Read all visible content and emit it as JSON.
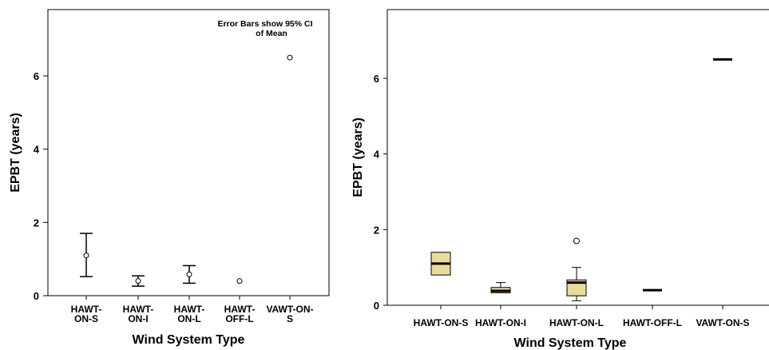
{
  "chart_data": [
    {
      "type": "errorbar",
      "annotation": [
        "Error Bars show 95% CI",
        "of Mean"
      ],
      "xlabel": "Wind System Type",
      "ylabel": "EPBT (years)",
      "ylim": [
        0,
        7.7
      ],
      "yticks": [
        "0",
        "2",
        "4",
        "6"
      ],
      "ytick_values": [
        0,
        2,
        4,
        6
      ],
      "categories": [
        [
          "HAWT-",
          "ON-S"
        ],
        [
          "HAWT-",
          "ON-I"
        ],
        [
          "HAWT-",
          "ON-L"
        ],
        [
          "HAWT-",
          "OFF-L"
        ],
        [
          "VAWT-ON-",
          "S"
        ]
      ],
      "means": [
        1.1,
        0.4,
        0.58,
        0.4,
        6.5
      ],
      "ci_low": [
        0.52,
        0.26,
        0.34,
        null,
        null
      ],
      "ci_high": [
        1.7,
        0.54,
        0.82,
        null,
        null
      ]
    },
    {
      "type": "boxplot",
      "xlabel": "Wind System Type",
      "ylabel": "EPBT (years)",
      "ylim": [
        0,
        7.7
      ],
      "yticks": [
        "0",
        "2",
        "4",
        "6"
      ],
      "ytick_values": [
        0,
        2,
        4,
        6
      ],
      "categories": [
        "HAWT-ON-S",
        "HAWT-ON-I",
        "HAWT-ON-L",
        "HAWT-OFF-L",
        "VAWT-ON-S"
      ],
      "boxes": [
        {
          "min": 0.8,
          "q1": 0.8,
          "median": 1.1,
          "q3": 1.4,
          "max": 1.4,
          "outliers": []
        },
        {
          "min": 0.33,
          "q1": 0.33,
          "median": 0.38,
          "q3": 0.47,
          "max": 0.6,
          "outliers": []
        },
        {
          "min": 0.12,
          "q1": 0.25,
          "median": 0.6,
          "q3": 0.67,
          "max": 1.0,
          "outliers": [
            1.7
          ]
        },
        {
          "min": 0.4,
          "q1": 0.4,
          "median": 0.4,
          "q3": 0.4,
          "max": 0.4,
          "outliers": []
        },
        {
          "min": 6.5,
          "q1": 6.5,
          "median": 6.5,
          "q3": 6.5,
          "max": 6.5,
          "outliers": []
        }
      ],
      "box_fill": "#e8dc9a"
    }
  ]
}
